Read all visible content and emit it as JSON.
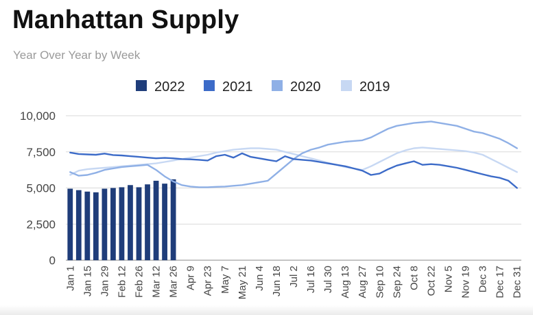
{
  "header": {
    "title": "Manhattan Supply",
    "subtitle": "Year Over Year by Week"
  },
  "chart_data": {
    "type": "bar+line",
    "title": "Manhattan Supply",
    "subtitle": "Year Over Year by Week",
    "xlabel": "",
    "ylabel": "",
    "ylim": [
      0,
      10000
    ],
    "yticks": [
      0,
      2500,
      5000,
      7500,
      10000
    ],
    "ytick_labels": [
      "0",
      "2,500",
      "5,000",
      "7,500",
      "10,000"
    ],
    "grid": true,
    "legend_position": "top",
    "week_count": 53,
    "x_tick_labels": [
      "Jan 1",
      "Jan 15",
      "Jan 29",
      "Feb 12",
      "Feb 26",
      "Mar 12",
      "Mar 26",
      "Apr 9",
      "Apr 23",
      "May 7",
      "May 21",
      "Jun 4",
      "Jun 18",
      "Jul 2",
      "Jul 16",
      "Jul 30",
      "Aug 13",
      "Aug 27",
      "Sep 10",
      "Sep 24",
      "Oct 8",
      "Oct 22",
      "Nov 5",
      "Nov 19",
      "Dec 3",
      "Dec 17",
      "Dec 31"
    ],
    "series": [
      {
        "name": "2022",
        "type": "bar",
        "color": "#1f3d7a",
        "values": [
          4950,
          4850,
          4750,
          4700,
          4950,
          5000,
          5050,
          5200,
          5050,
          5250,
          5500,
          5300,
          5600
        ]
      },
      {
        "name": "2021",
        "type": "line",
        "color": "#3c6bc8",
        "values": [
          7450,
          7350,
          7320,
          7300,
          7380,
          7280,
          7250,
          7200,
          7150,
          7100,
          7050,
          7080,
          7050,
          7000,
          6980,
          6950,
          6900,
          7200,
          7300,
          7100,
          7400,
          7150,
          7050,
          6950,
          6850,
          7200,
          7000,
          6950,
          6900,
          6800,
          6700,
          6600,
          6500,
          6350,
          6200,
          5900,
          6000,
          6300,
          6550,
          6700,
          6850,
          6600,
          6650,
          6600,
          6500,
          6400,
          6250,
          6100,
          5950,
          5800,
          5700,
          5500,
          5000
        ]
      },
      {
        "name": "2020",
        "type": "line",
        "color": "#8fb0e6",
        "values": [
          6100,
          5850,
          5900,
          6050,
          6250,
          6350,
          6450,
          6500,
          6550,
          6600,
          6250,
          5800,
          5450,
          5200,
          5100,
          5050,
          5050,
          5080,
          5100,
          5150,
          5200,
          5300,
          5400,
          5500,
          6000,
          6500,
          7000,
          7400,
          7650,
          7800,
          8000,
          8100,
          8200,
          8250,
          8300,
          8500,
          8800,
          9100,
          9300,
          9400,
          9500,
          9550,
          9600,
          9500,
          9400,
          9300,
          9100,
          8900,
          8800,
          8600,
          8400,
          8100,
          7750
        ]
      },
      {
        "name": "2019",
        "type": "line",
        "color": "#c7d8f3",
        "values": [
          5900,
          6200,
          6300,
          6350,
          6400,
          6450,
          6500,
          6550,
          6600,
          6650,
          6700,
          6800,
          6900,
          7000,
          7100,
          7200,
          7300,
          7450,
          7550,
          7650,
          7700,
          7750,
          7750,
          7700,
          7650,
          7500,
          7350,
          7200,
          7050,
          6900,
          6750,
          6600,
          6450,
          6350,
          6250,
          6500,
          6800,
          7100,
          7400,
          7600,
          7750,
          7800,
          7750,
          7700,
          7650,
          7600,
          7550,
          7450,
          7300,
          7000,
          6700,
          6400,
          6100
        ]
      }
    ]
  }
}
